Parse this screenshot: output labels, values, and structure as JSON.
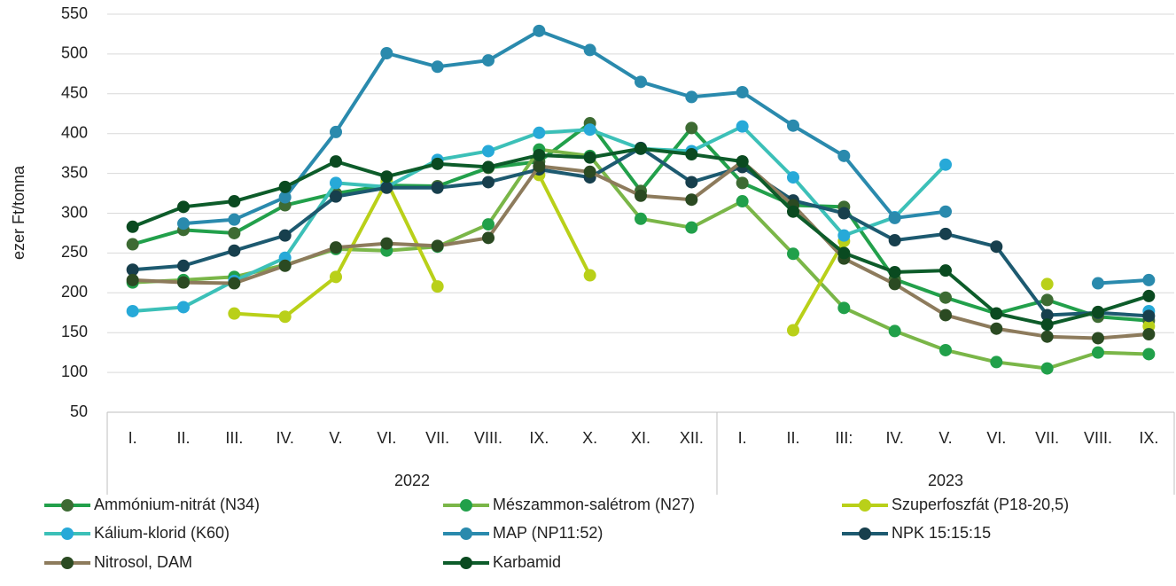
{
  "chart_data": {
    "type": "line",
    "y_label": "ezer Ft/tonna",
    "groups": [
      {
        "label": "2022",
        "categories": [
          "I.",
          "II.",
          "III.",
          "IV.",
          "V.",
          "VI.",
          "VII.",
          "VIII.",
          "IX.",
          "X.",
          "XI.",
          "XII."
        ]
      },
      {
        "label": "2023",
        "categories": [
          "I.",
          "II.",
          "III:",
          "IV.",
          "V.",
          "VI.",
          "VII.",
          "VIII.",
          "IX."
        ]
      }
    ],
    "ylim": [
      50,
      550
    ],
    "yticks": [
      50,
      100,
      150,
      200,
      250,
      300,
      350,
      400,
      450,
      500,
      550
    ],
    "grid": true,
    "legend": "bottom",
    "series": [
      {
        "name": "Ammónium-nitrát (N34)",
        "color": "#22a04b",
        "marker_color": "#3d6b33",
        "values": [
          261,
          279,
          275,
          310,
          325,
          335,
          334,
          357,
          365,
          413,
          328,
          407,
          338,
          310,
          308,
          217,
          194,
          174,
          191,
          170,
          165
        ]
      },
      {
        "name": "Mészammon-salétrom (N27)",
        "color": "#7ab648",
        "marker_color": "#21a04a",
        "values": [
          213,
          216,
          220,
          235,
          255,
          253,
          258,
          286,
          380,
          372,
          293,
          282,
          315,
          249,
          181,
          152,
          128,
          113,
          105,
          125,
          123
        ]
      },
      {
        "name": "Szuperfoszfát (P18-20,5)",
        "color": "#b9d019",
        "marker_color": "#b9d019",
        "values": [
          null,
          null,
          174,
          170,
          220,
          340,
          208,
          null,
          348,
          222,
          null,
          null,
          null,
          153,
          265,
          null,
          null,
          null,
          211,
          null,
          158
        ]
      },
      {
        "name": "Kálium-klorid (K60)",
        "color": "#3cc0b8",
        "marker_color": "#27a9d8",
        "values": [
          177,
          182,
          215,
          244,
          338,
          333,
          367,
          378,
          401,
          405,
          381,
          378,
          409,
          345,
          272,
          295,
          361,
          null,
          null,
          null,
          177
        ]
      },
      {
        "name": "MAP (NP11:52)",
        "color": "#2a8aad",
        "marker_color": "#2a8aad",
        "values": [
          null,
          287,
          292,
          320,
          402,
          501,
          484,
          492,
          529,
          505,
          465,
          446,
          452,
          410,
          372,
          294,
          302,
          null,
          null,
          212,
          216
        ]
      },
      {
        "name": "NPK 15:15:15",
        "color": "#1d5a70",
        "marker_color": "#173f4d",
        "values": [
          229,
          234,
          253,
          272,
          321,
          332,
          332,
          339,
          355,
          345,
          382,
          339,
          358,
          316,
          300,
          266,
          274,
          258,
          172,
          175,
          171
        ]
      },
      {
        "name": "Nitrosol, DAM",
        "color": "#8d7b5c",
        "marker_color": "#2b4a22",
        "values": [
          216,
          213,
          212,
          234,
          257,
          262,
          259,
          269,
          359,
          352,
          322,
          317,
          365,
          310,
          243,
          211,
          172,
          155,
          145,
          143,
          148
        ]
      },
      {
        "name": "Karbamid",
        "color": "#0d5c2a",
        "marker_color": "#0a4a20",
        "values": [
          283,
          308,
          315,
          333,
          365,
          346,
          362,
          358,
          373,
          370,
          381,
          374,
          365,
          302,
          250,
          226,
          228,
          174,
          160,
          176,
          196
        ]
      }
    ]
  }
}
